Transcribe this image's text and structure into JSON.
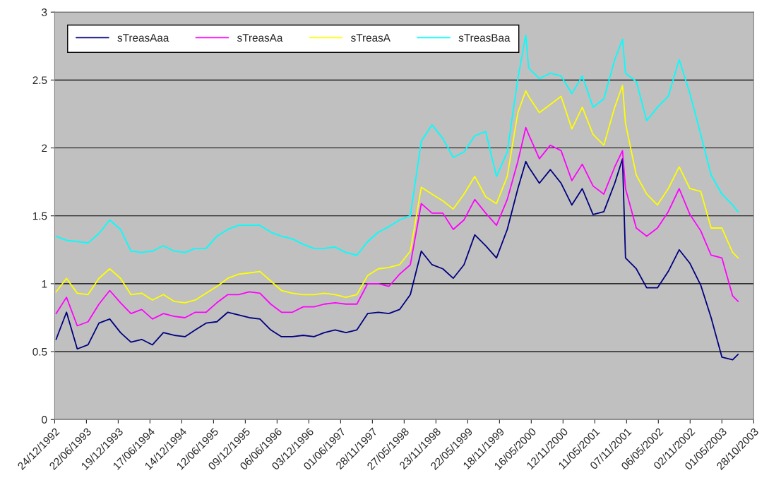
{
  "chart_data": {
    "type": "line",
    "x": [
      "1993-01-01",
      "1993-03-01",
      "1993-05-01",
      "1993-07-01",
      "1993-09-01",
      "1993-11-01",
      "1994-01-01",
      "1994-03-01",
      "1994-05-01",
      "1994-07-01",
      "1994-09-01",
      "1994-11-01",
      "1995-01-01",
      "1995-03-01",
      "1995-05-01",
      "1995-07-01",
      "1995-09-01",
      "1995-11-01",
      "1996-01-01",
      "1996-03-01",
      "1996-05-01",
      "1996-07-01",
      "1996-09-01",
      "1996-11-01",
      "1997-01-01",
      "1997-03-01",
      "1997-05-01",
      "1997-07-01",
      "1997-09-01",
      "1997-11-01",
      "1998-01-01",
      "1998-03-01",
      "1998-05-01",
      "1998-07-01",
      "1998-09-01",
      "1998-11-01",
      "1999-01-01",
      "1999-03-01",
      "1999-05-01",
      "1999-07-01",
      "1999-09-01",
      "1999-11-01",
      "2000-01-01",
      "2000-03-01",
      "2000-04-15",
      "2000-05-01",
      "2000-07-01",
      "2000-09-01",
      "2000-11-01",
      "2001-01-01",
      "2001-03-01",
      "2001-05-01",
      "2001-07-01",
      "2001-09-01",
      "2001-10-15",
      "2001-11-01",
      "2002-01-01",
      "2002-03-01",
      "2002-05-01",
      "2002-07-01",
      "2002-09-01",
      "2002-11-01",
      "2003-01-01",
      "2003-03-01",
      "2003-05-01",
      "2003-07-01",
      "2003-08-01"
    ],
    "series": [
      {
        "name": "sTreasAaa",
        "color": "#000080",
        "values": [
          0.59,
          0.79,
          0.52,
          0.55,
          0.71,
          0.74,
          0.64,
          0.57,
          0.59,
          0.55,
          0.64,
          0.62,
          0.61,
          0.66,
          0.71,
          0.72,
          0.79,
          0.77,
          0.75,
          0.74,
          0.66,
          0.61,
          0.61,
          0.62,
          0.61,
          0.64,
          0.66,
          0.64,
          0.66,
          0.78,
          0.79,
          0.78,
          0.81,
          0.92,
          1.24,
          1.14,
          1.11,
          1.04,
          1.14,
          1.36,
          1.28,
          1.19,
          1.4,
          1.7,
          1.9,
          1.86,
          1.74,
          1.84,
          1.74,
          1.58,
          1.7,
          1.51,
          1.53,
          1.74,
          1.92,
          1.19,
          1.11,
          0.97,
          0.97,
          1.09,
          1.25,
          1.15,
          0.99,
          0.75,
          0.46,
          0.44,
          0.48
        ]
      },
      {
        "name": "sTreasAa",
        "color": "#ff00ff",
        "values": [
          0.78,
          0.9,
          0.69,
          0.72,
          0.85,
          0.95,
          0.86,
          0.78,
          0.81,
          0.74,
          0.78,
          0.76,
          0.75,
          0.79,
          0.79,
          0.86,
          0.92,
          0.92,
          0.94,
          0.93,
          0.85,
          0.79,
          0.79,
          0.83,
          0.83,
          0.85,
          0.86,
          0.85,
          0.85,
          1.0,
          1.0,
          0.98,
          1.07,
          1.14,
          1.59,
          1.52,
          1.52,
          1.4,
          1.47,
          1.62,
          1.52,
          1.43,
          1.62,
          1.9,
          2.15,
          2.1,
          1.92,
          2.02,
          1.98,
          1.76,
          1.88,
          1.72,
          1.66,
          1.86,
          1.98,
          1.7,
          1.41,
          1.35,
          1.41,
          1.53,
          1.7,
          1.51,
          1.39,
          1.21,
          1.19,
          0.91,
          0.87
        ]
      },
      {
        "name": "sTreasA",
        "color": "#ffff00",
        "values": [
          0.94,
          1.04,
          0.93,
          0.92,
          1.04,
          1.11,
          1.04,
          0.92,
          0.93,
          0.88,
          0.92,
          0.87,
          0.86,
          0.88,
          0.93,
          0.98,
          1.04,
          1.07,
          1.08,
          1.09,
          1.02,
          0.95,
          0.93,
          0.92,
          0.92,
          0.93,
          0.92,
          0.9,
          0.92,
          1.06,
          1.11,
          1.12,
          1.14,
          1.24,
          1.71,
          1.66,
          1.61,
          1.55,
          1.66,
          1.79,
          1.64,
          1.59,
          1.79,
          2.26,
          2.42,
          2.38,
          2.26,
          2.32,
          2.38,
          2.14,
          2.3,
          2.1,
          2.02,
          2.3,
          2.46,
          2.18,
          1.8,
          1.66,
          1.58,
          1.7,
          1.86,
          1.7,
          1.68,
          1.41,
          1.41,
          1.23,
          1.19
        ]
      },
      {
        "name": "sTreasBaa",
        "color": "#00ffff",
        "values": [
          1.35,
          1.32,
          1.31,
          1.3,
          1.37,
          1.47,
          1.4,
          1.24,
          1.23,
          1.24,
          1.28,
          1.24,
          1.23,
          1.26,
          1.26,
          1.35,
          1.4,
          1.43,
          1.43,
          1.43,
          1.38,
          1.35,
          1.33,
          1.29,
          1.26,
          1.26,
          1.27,
          1.23,
          1.21,
          1.31,
          1.38,
          1.42,
          1.47,
          1.5,
          2.05,
          2.17,
          2.07,
          1.93,
          1.97,
          2.09,
          2.12,
          1.79,
          1.97,
          2.51,
          2.83,
          2.59,
          2.51,
          2.55,
          2.53,
          2.4,
          2.53,
          2.3,
          2.36,
          2.65,
          2.8,
          2.55,
          2.49,
          2.2,
          2.3,
          2.38,
          2.65,
          2.4,
          2.1,
          1.8,
          1.66,
          1.58,
          1.53
        ]
      }
    ],
    "xlim": [
      "1992-12-24",
      "2003-10-28"
    ],
    "xticks": [
      {
        "value": "1992-12-24",
        "label": "24/12/1992"
      },
      {
        "value": "1993-06-22",
        "label": "22/06/1993"
      },
      {
        "value": "1993-12-19",
        "label": "19/12/1993"
      },
      {
        "value": "1994-06-17",
        "label": "17/06/1994"
      },
      {
        "value": "1994-12-14",
        "label": "14/12/1994"
      },
      {
        "value": "1995-06-12",
        "label": "12/06/1995"
      },
      {
        "value": "1995-12-09",
        "label": "09/12/1995"
      },
      {
        "value": "1996-06-06",
        "label": "06/06/1996"
      },
      {
        "value": "1996-12-03",
        "label": "03/12/1996"
      },
      {
        "value": "1997-06-01",
        "label": "01/06/1997"
      },
      {
        "value": "1997-11-28",
        "label": "28/11/1997"
      },
      {
        "value": "1998-05-27",
        "label": "27/05/1998"
      },
      {
        "value": "1998-11-23",
        "label": "23/11/1998"
      },
      {
        "value": "1999-05-22",
        "label": "22/05/1999"
      },
      {
        "value": "1999-11-18",
        "label": "18/11/1999"
      },
      {
        "value": "2000-05-16",
        "label": "16/05/2000"
      },
      {
        "value": "2000-11-12",
        "label": "12/11/2000"
      },
      {
        "value": "2001-05-11",
        "label": "11/05/2001"
      },
      {
        "value": "2001-11-07",
        "label": "07/11/2001"
      },
      {
        "value": "2002-05-06",
        "label": "06/05/2002"
      },
      {
        "value": "2002-11-02",
        "label": "02/11/2002"
      },
      {
        "value": "2003-05-01",
        "label": "01/05/2003"
      },
      {
        "value": "2003-10-28",
        "label": "28/10/2003"
      }
    ],
    "ylim": [
      0,
      3
    ],
    "yticks": [
      0,
      0.5,
      1,
      1.5,
      2,
      2.5,
      3
    ],
    "grid": "y",
    "legend": "top left",
    "marker": "none",
    "line_style": "solid"
  }
}
